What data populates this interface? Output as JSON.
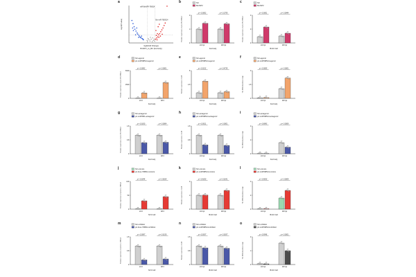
{
  "colors": {
    "grey": "#cfcfcf",
    "pink": "#cf3a6a",
    "orange": "#f2a46b",
    "blue": "#4a58a8",
    "red": "#e63a34",
    "dark": "#4b4b4b",
    "green": "#9ad8b0",
    "volcano_blue": "#2c5bd6",
    "volcano_red": "#e02626"
  },
  "panels": [
    {
      "id": "a",
      "label": "a",
      "kind": "volcano",
      "xlabel": "log2(Fold Change)",
      "ylabel": "-log10(P-value)",
      "caption": "BmNPV_vs_MC (Fat body)",
      "left_points": [
        [
          -5.2,
          3.6
        ],
        [
          -4.9,
          3.1
        ],
        [
          -4.6,
          2.6
        ],
        [
          -4.4,
          2.2
        ],
        [
          -4.1,
          1.9
        ],
        [
          -3.8,
          1.6
        ],
        [
          -3.6,
          1.4
        ],
        [
          -3.3,
          1.2
        ],
        [
          -3.1,
          1.0
        ],
        [
          -2.9,
          0.9
        ],
        [
          -2.7,
          0.8
        ],
        [
          -2.4,
          0.7
        ],
        [
          -2.2,
          0.6
        ],
        [
          -4.8,
          2.0
        ],
        [
          -3.9,
          2.4
        ],
        [
          -2.6,
          1.1
        ],
        [
          -3.4,
          0.9
        ],
        [
          -4.2,
          1.3
        ],
        [
          -2.1,
          0.5
        ],
        [
          -5.0,
          2.4
        ]
      ],
      "right_points": [
        [
          1.2,
          0.6
        ],
        [
          1.5,
          0.8
        ],
        [
          1.8,
          1.0
        ],
        [
          2.0,
          1.3
        ],
        [
          2.3,
          1.5
        ],
        [
          2.6,
          1.8
        ],
        [
          2.9,
          2.1
        ],
        [
          3.2,
          2.4
        ],
        [
          3.5,
          2.8
        ],
        [
          1.4,
          1.2
        ],
        [
          1.7,
          1.5
        ],
        [
          2.1,
          0.9
        ],
        [
          2.5,
          1.1
        ],
        [
          3.0,
          1.4
        ],
        [
          1.3,
          2.0
        ],
        [
          1.9,
          2.6
        ],
        [
          2.2,
          3.0
        ],
        [
          4.3,
          5.9
        ],
        [
          3.8,
          3.2
        ],
        [
          1.6,
          0.5
        ]
      ],
      "ns_points": [
        [
          -1.0,
          0.2
        ],
        [
          -0.6,
          0.5
        ],
        [
          -0.3,
          0.3
        ],
        [
          0.0,
          0.6
        ],
        [
          0.3,
          0.2
        ],
        [
          0.6,
          0.4
        ],
        [
          0.9,
          0.3
        ],
        [
          -0.8,
          0.7
        ],
        [
          0.4,
          0.8
        ],
        [
          -0.2,
          0.9
        ],
        [
          0.8,
          0.6
        ],
        [
          -1.1,
          0.4
        ]
      ],
      "annotations": [
        "miR-BmNPV-798514",
        "Bm-miR-7800514"
      ]
    },
    {
      "id": "b",
      "label": "b",
      "kind": "bar",
      "legend": [
        "NC",
        "BmNPV"
      ],
      "legendColors": [
        "grey",
        "pink"
      ],
      "groups": [
        "24 hpi",
        "48 hpi"
      ],
      "values": [
        [
          1.0,
          1.42
        ],
        [
          1.0,
          1.38
        ]
      ],
      "ylim": [
        0,
        2
      ],
      "pvalues": [
        "p = 0.0002",
        "p = 0.2755"
      ],
      "ylabel": "Relative expression of pri-miR-798514",
      "xlabel": "Fat body"
    },
    {
      "id": "c",
      "label": "c",
      "kind": "bar",
      "legend": [
        "NC",
        "BmNPV"
      ],
      "legendColors": [
        "grey",
        "pink"
      ],
      "groups": [
        "24 hpi",
        "48 hpi"
      ],
      "values": [
        [
          0.9,
          2.3
        ],
        [
          1.0,
          1.4
        ]
      ],
      "ylim": [
        0,
        4
      ],
      "pvalues": [
        "p = 0.0001",
        "p = 0.0844"
      ],
      "ylabel": "Relative expression of pri-miR-798514",
      "xlabel": "BmN Cell"
    },
    {
      "id": "d",
      "label": "d",
      "kind": "bar",
      "legend": [
        "NC-agomir",
        "pri-miR798514-agomir"
      ],
      "legendColors": [
        "grey",
        "orange"
      ],
      "groups": [
        "24 h",
        "48 h"
      ],
      "values": [
        [
          1.2,
          980
        ],
        [
          1.1,
          2850
        ]
      ],
      "ylim": [
        0,
        5000
      ],
      "pvalues": [
        "p = 0.0082",
        "p = 0.0001"
      ],
      "ylabel": "Relative expression of pri-miR-798514",
      "xlabel": "Fat body"
    },
    {
      "id": "e",
      "label": "e",
      "kind": "bar",
      "legend": [
        "NC-agomir",
        "pri-miR798514-agomir"
      ],
      "legendColors": [
        "grey",
        "orange"
      ],
      "groups": [
        "24 hpi",
        "48 hpi"
      ],
      "values": [
        [
          1.0,
          3.1
        ],
        [
          1.0,
          1.2
        ]
      ],
      "ylim": [
        0,
        5
      ],
      "pvalues": [
        "p = 0.0212",
        "p = 0.4735"
      ],
      "ylabel": "Relative expression of ie28",
      "xlabel": "Fat body"
    },
    {
      "id": "f",
      "label": "f",
      "kind": "bar",
      "legend": [
        "NC-agomir",
        "pri-miR798514-agomir"
      ],
      "legendColors": [
        "grey",
        "orange"
      ],
      "groups": [
        "24 hpi",
        "48 hpi"
      ],
      "values": [
        [
          0.06,
          0.08
        ],
        [
          1.05,
          2.2
        ]
      ],
      "ylim": [
        0,
        3
      ],
      "pvalues": [
        "p = 0.0005",
        "p = 0.0001"
      ],
      "ylabel": "The DNA abundance (ng)",
      "xlabel": "Fat body"
    },
    {
      "id": "g",
      "label": "g",
      "kind": "bar",
      "legend": [
        "NC-antagomir",
        "pri-miR7861-antagomir"
      ],
      "legendColors": [
        "grey",
        "blue"
      ],
      "groups": [
        "24 h",
        "48 h"
      ],
      "values": [
        [
          1.0,
          0.6
        ],
        [
          1.0,
          0.62
        ]
      ],
      "ylim": [
        0,
        1.5
      ],
      "pvalues": [
        "p = 0.0100",
        "p = 0.0064"
      ],
      "ylabel": "Relative expression of pri-miR-798514",
      "xlabel": "Fat body"
    },
    {
      "id": "h",
      "label": "h",
      "kind": "bar",
      "legend": [
        "NC-antagomir",
        "pri-miR798514-antagomir"
      ],
      "legendColors": [
        "grey",
        "blue"
      ],
      "groups": [
        "24 hpi",
        "48 hpi"
      ],
      "values": [
        [
          1.0,
          0.48
        ],
        [
          1.0,
          0.45
        ]
      ],
      "ylim": [
        0,
        1.5
      ],
      "pvalues": [
        "p = 0.0011",
        "p = 0.0001"
      ],
      "ylabel": "Relative expression of ie28",
      "xlabel": "Fat body"
    },
    {
      "id": "i",
      "label": "i",
      "kind": "bar",
      "legend": [
        "NC-antagomir",
        "pri-miR798514-antagomir"
      ],
      "legendColors": [
        "grey",
        "blue"
      ],
      "groups": [
        "24 hpi",
        "48 hpi"
      ],
      "values": [
        [
          0.05,
          0.04
        ],
        [
          1.6,
          0.95
        ]
      ],
      "ylim": [
        0,
        4
      ],
      "pvalues": [
        "p = 0.6883",
        "p = 0.0008"
      ],
      "ylabel": "The DNA abundance (ng)",
      "xlabel": "Fat body"
    },
    {
      "id": "j",
      "label": "j",
      "kind": "bar",
      "legend": [
        "NC-mimics",
        "pri-bmo-798514-mimics"
      ],
      "legendColors": [
        "green",
        "red"
      ],
      "groups": [
        "24 h",
        "48 h"
      ],
      "values": [
        [
          1.0,
          30
        ],
        [
          1.0,
          45
        ]
      ],
      "ylim": [
        0,
        100
      ],
      "pvalues": [
        "p = 0.0244",
        "p = 0.0614"
      ],
      "ylabel": "Relative expression of pri-bmo-798514",
      "xlabel": "Sf-9 Cell"
    },
    {
      "id": "k",
      "label": "k",
      "kind": "bar",
      "legend": [
        "NC-mimics",
        "pri-miR798514-mimics"
      ],
      "legendColors": [
        "grey",
        "red"
      ],
      "groups": [
        "24 hpi",
        "48 hpi"
      ],
      "values": [
        [
          1.0,
          1.02
        ],
        [
          1.0,
          1.35
        ]
      ],
      "ylim": [
        0,
        2
      ],
      "pvalues": [
        "p = 0.9100",
        "p = 0.0141"
      ],
      "ylabel": "Relative expression of ie28",
      "xlabel": "BmN Cell"
    },
    {
      "id": "l",
      "label": "l",
      "kind": "bar",
      "legend": [
        "NC-mimics",
        "pri-miR798514-mimics"
      ],
      "legendColors": [
        "green",
        "red"
      ],
      "groups": [
        "24 hpi",
        "48 hpi"
      ],
      "values": [
        [
          0.04,
          0.06
        ],
        [
          1.6,
          2.7
        ]
      ],
      "ylim": [
        0,
        4
      ],
      "pvalues": [
        "p = 0.9633",
        "p = 0.0009"
      ],
      "ylabel": "The DNA abundance (ng)",
      "xlabel": "BmN Cell"
    },
    {
      "id": "m",
      "label": "m",
      "kind": "bar",
      "legend": [
        "NC-inhibitor",
        "pri-bmo-798514-inhibitor"
      ],
      "legendColors": [
        "grey",
        "blue"
      ],
      "groups": [
        "24 h",
        "48 h"
      ],
      "values": [
        [
          1.0,
          0.25
        ],
        [
          1.0,
          0.3
        ]
      ],
      "ylim": [
        0,
        1.5
      ],
      "pvalues": [
        "p = 0.0087",
        "p = 0.0130"
      ],
      "ylabel": "Relative expression of pri-bmo-798514",
      "xlabel": "Sf-9 Cell"
    },
    {
      "id": "n",
      "label": "n",
      "kind": "bar",
      "legend": [
        "NC-inhibitor",
        "pri-miR798514-inhibitor"
      ],
      "legendColors": [
        "grey",
        "blue"
      ],
      "groups": [
        "24 hpi",
        "48 hpi"
      ],
      "values": [
        [
          1.0,
          0.9
        ],
        [
          1.0,
          0.88
        ]
      ],
      "ylim": [
        0,
        1.5
      ],
      "pvalues": [
        "p = 0.0037",
        "p = 0.0037"
      ],
      "ylabel": "Relative expression of ie28",
      "xlabel": "BmN Cell"
    },
    {
      "id": "o",
      "label": "o",
      "kind": "bar",
      "legend": [
        "NC-inhibitor",
        "pri-miR798514-inhibitor"
      ],
      "legendColors": [
        "grey",
        "dark"
      ],
      "groups": [
        "24 hpi",
        "48 hpi"
      ],
      "values": [
        [
          0.06,
          0.05
        ],
        [
          1.55,
          1.0
        ]
      ],
      "ylim": [
        0,
        2
      ],
      "pvalues": [
        "p = 0.9546",
        "p = 0.0001"
      ],
      "ylabel": "The DNA abundance (ng)",
      "xlabel": "BmN Cell"
    }
  ]
}
